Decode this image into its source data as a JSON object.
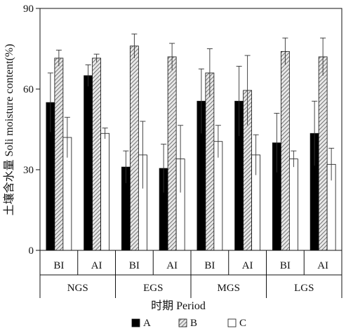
{
  "chart_data": {
    "type": "bar",
    "ylabel": "土壤含水量 Soli moisture content(%)",
    "xlabel": "时期 Period",
    "ylim": [
      0,
      90
    ],
    "yticks": [
      0,
      30,
      60,
      90
    ],
    "categories": [
      "BI",
      "AI",
      "BI",
      "AI",
      "BI",
      "AI",
      "BI",
      "AI"
    ],
    "groups": [
      "NGS",
      "EGS",
      "MGS",
      "LGS"
    ],
    "legend_placement": "bottom",
    "series": [
      {
        "name": "A",
        "fill": "solid-black",
        "values": [
          55,
          65,
          31,
          30.5,
          55.5,
          55.5,
          40,
          43.5
        ],
        "errors": [
          11,
          4,
          6,
          9,
          12,
          13,
          11,
          12
        ]
      },
      {
        "name": "B",
        "fill": "hatched",
        "values": [
          71.5,
          71.5,
          76,
          72,
          66,
          59.5,
          74,
          72
        ],
        "errors": [
          3,
          1.5,
          4.5,
          5,
          9,
          13,
          5,
          7
        ]
      },
      {
        "name": "C",
        "fill": "white",
        "values": [
          42,
          43.5,
          35.5,
          34,
          40.5,
          35.5,
          34,
          32
        ],
        "errors": [
          7.5,
          2,
          12.5,
          12.5,
          6,
          7.5,
          3,
          6
        ]
      }
    ]
  }
}
